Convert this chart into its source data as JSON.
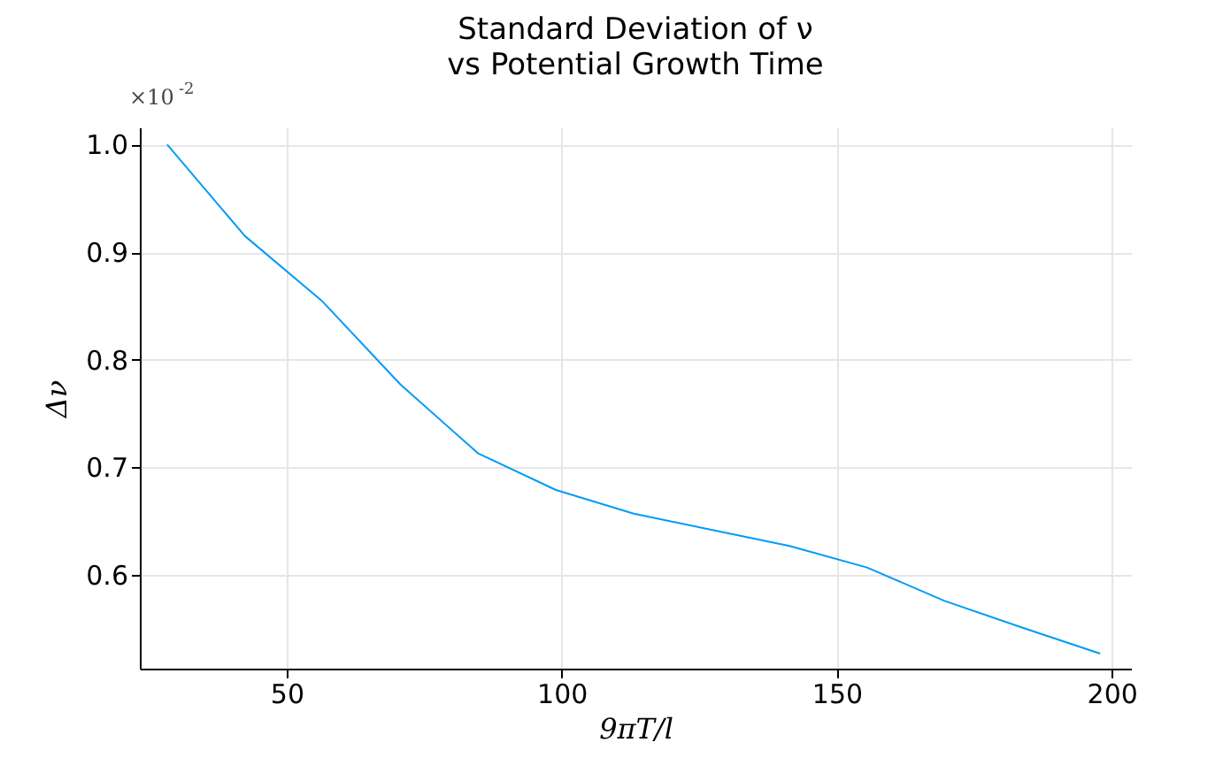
{
  "chart_data": {
    "type": "line",
    "title": "Standard Deviation of ν\nvs Potential Growth Time",
    "xlabel": "9πT/l",
    "ylabel": "Δν",
    "annotations": [
      "×10$^{-2}$"
    ],
    "x": [
      28.27,
      42.41,
      56.55,
      70.69,
      84.82,
      98.96,
      113.1,
      127.2,
      141.4,
      155.5,
      169.6,
      183.8,
      197.9
    ],
    "series": [
      {
        "color": "#009af9",
        "values": [
          1.0,
          0.915,
          0.854,
          0.777,
          0.713,
          0.679,
          0.657,
          0.642,
          0.627,
          0.607,
          0.576,
          0.551,
          0.527
        ]
      }
    ],
    "xlim": [
      23.3,
      203.5
    ],
    "ylim": [
      0.513,
      1.016
    ],
    "xticks": [
      50,
      100,
      150,
      200
    ],
    "yticks": [
      0.6,
      0.7,
      0.8,
      0.9,
      {
        "value": 1,
        "label": "1.0"
      }
    ],
    "grid": true,
    "legend": false
  }
}
